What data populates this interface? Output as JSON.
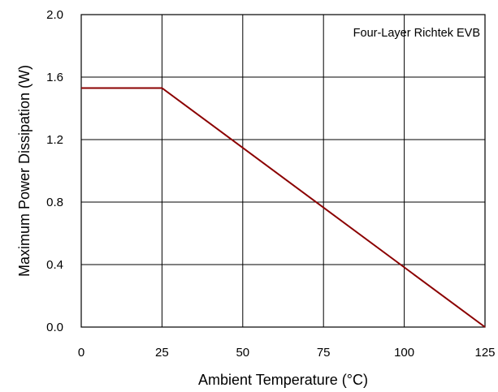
{
  "chart_data": {
    "type": "line",
    "annotation": "Four-Layer Richtek EVB",
    "xlabel": "Ambient Temperature (°C)",
    "ylabel": "Maximum Power Dissipation (W)",
    "xlim": [
      0,
      125
    ],
    "ylim": [
      0,
      2.0
    ],
    "x_ticks": [
      0,
      25,
      50,
      75,
      100,
      125
    ],
    "y_ticks": [
      0.0,
      0.4,
      0.8,
      1.2,
      1.6,
      2.0
    ],
    "x_tick_labels": [
      "0",
      "25",
      "50",
      "75",
      "100",
      "125"
    ],
    "y_tick_labels": [
      "0.0",
      "0.4",
      "0.8",
      "1.2",
      "1.6",
      "2.0"
    ],
    "grid": true,
    "series": [
      {
        "color": "#8b0000",
        "x": [
          0,
          25,
          125
        ],
        "y": [
          1.53,
          1.53,
          0
        ]
      }
    ]
  }
}
